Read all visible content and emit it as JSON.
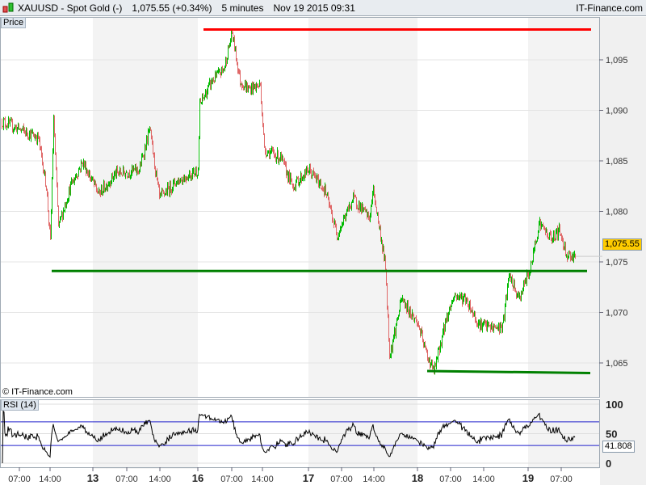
{
  "header": {
    "symbol": "XAUUSD - Spot Gold (-)",
    "price": "1,075.55 (+0.34%)",
    "interval": "5 minutes",
    "datetime": "Nov 19 2015 09:31",
    "brand": "IT-Finance.com",
    "logo_icon": "candlestick-icon"
  },
  "price_panel_label": "Price",
  "rsi_panel_label": "RSI (14)",
  "copyright": "© IT-Finance.com",
  "colors": {
    "up": "#00bb00",
    "down": "#e06868",
    "resistance": "#ff0000",
    "support": "#008000",
    "rsi_line": "#000000",
    "rsi_bands": "#2020cc",
    "last_price_bg": "#ffcc00",
    "weekday_shade": "#f3f3f3"
  },
  "chart_data": [
    {
      "type": "candlestick",
      "title": "XAUUSD - Spot Gold (-)",
      "ylim": [
        1061.5,
        1098
      ],
      "y_ticks": [
        "1,065",
        "1,070",
        "1,075",
        "1,080",
        "1,085",
        "1,090",
        "1,095"
      ],
      "y_tick_values": [
        1065,
        1070,
        1075,
        1080,
        1085,
        1090,
        1095
      ],
      "x_ticks": [
        {
          "label": "07:00",
          "bar": 22
        },
        {
          "label": "14:00",
          "bar": 60
        },
        {
          "label": "13",
          "bar": 113,
          "bold": true
        },
        {
          "label": "07:00",
          "bar": 155
        },
        {
          "label": "14:00",
          "bar": 196
        },
        {
          "label": "16",
          "bar": 243,
          "bold": true
        },
        {
          "label": "07:00",
          "bar": 285
        },
        {
          "label": "14:00",
          "bar": 323
        },
        {
          "label": "17",
          "bar": 380,
          "bold": true
        },
        {
          "label": "07:00",
          "bar": 421
        },
        {
          "label": "14:00",
          "bar": 461
        },
        {
          "label": "18",
          "bar": 515,
          "bold": true
        },
        {
          "label": "07:00",
          "bar": 556
        },
        {
          "label": "14:00",
          "bar": 597
        },
        {
          "label": "19",
          "bar": 652,
          "bold": true
        },
        {
          "label": "07:00",
          "bar": 693
        }
      ],
      "price_path": [
        [
          0,
          1088.9
        ],
        [
          45,
          1087.3
        ],
        [
          55,
          1082.5
        ],
        [
          60,
          1076.9
        ],
        [
          64,
          1089.3
        ],
        [
          70,
          1078.5
        ],
        [
          85,
          1082.5
        ],
        [
          100,
          1084.9
        ],
        [
          120,
          1081.7
        ],
        [
          140,
          1083.7
        ],
        [
          170,
          1084.1
        ],
        [
          183,
          1088.1
        ],
        [
          195,
          1081.3
        ],
        [
          215,
          1082.9
        ],
        [
          243,
          1084.1
        ],
        [
          245,
          1090.5
        ],
        [
          260,
          1092.9
        ],
        [
          275,
          1094.1
        ],
        [
          285,
          1097.7
        ],
        [
          295,
          1092.9
        ],
        [
          305,
          1092.1
        ],
        [
          320,
          1092.5
        ],
        [
          325,
          1086.1
        ],
        [
          345,
          1085.3
        ],
        [
          360,
          1082.5
        ],
        [
          380,
          1084.1
        ],
        [
          400,
          1082.1
        ],
        [
          415,
          1077.7
        ],
        [
          435,
          1081.3
        ],
        [
          455,
          1079.3
        ],
        [
          460,
          1082.1
        ],
        [
          475,
          1074.5
        ],
        [
          480,
          1065.7
        ],
        [
          495,
          1071.3
        ],
        [
          515,
          1068.9
        ],
        [
          525,
          1066.1
        ],
        [
          535,
          1064.1
        ],
        [
          550,
          1069.3
        ],
        [
          560,
          1071.7
        ],
        [
          575,
          1071.3
        ],
        [
          590,
          1068.9
        ],
        [
          605,
          1068.5
        ],
        [
          620,
          1068.5
        ],
        [
          628,
          1073.7
        ],
        [
          640,
          1071.3
        ],
        [
          655,
          1074.5
        ],
        [
          665,
          1078.9
        ],
        [
          680,
          1077.3
        ],
        [
          690,
          1078.1
        ],
        [
          700,
          1075.7
        ],
        [
          710,
          1075.55
        ]
      ],
      "last_price": "1,075.55",
      "trend_lines": [
        {
          "color": "red",
          "from": [
            250,
            1098
          ],
          "to": [
            730,
            1098
          ]
        },
        {
          "color": "green",
          "from": [
            62,
            1074.1
          ],
          "to": [
            725,
            1074.1
          ]
        },
        {
          "color": "green",
          "from": [
            527,
            1064.2
          ],
          "to": [
            729,
            1064.0
          ]
        }
      ]
    },
    {
      "type": "line",
      "title": "RSI (14)",
      "ylim": [
        0,
        100
      ],
      "y_ticks": [
        "0",
        "50",
        "100"
      ],
      "bands": [
        30,
        70
      ],
      "last_value": "41.808"
    }
  ]
}
